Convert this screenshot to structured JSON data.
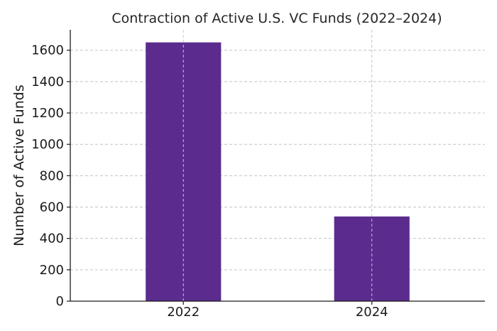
{
  "chart_data": {
    "type": "bar",
    "title": "Contraction of Active U.S. VC Funds (2022–2024)",
    "xlabel": "",
    "ylabel": "Number of Active Funds",
    "categories": [
      "2022",
      "2024"
    ],
    "values": [
      1650,
      540
    ],
    "ylim": [
      0,
      1730
    ],
    "yticks": [
      0,
      200,
      400,
      600,
      800,
      1000,
      1200,
      1400,
      1600
    ],
    "bar_color": "#5b2c8e",
    "grid": true,
    "grid_style": "dashed"
  }
}
